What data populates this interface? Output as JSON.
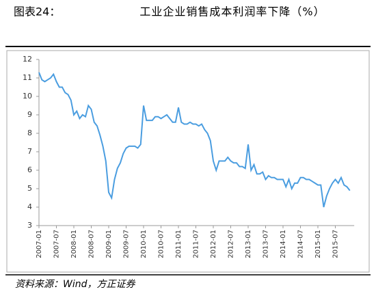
{
  "chart_data": {
    "type": "line",
    "figure_label": "图表24：",
    "title": "工业企业销售成本利润率下降（%）",
    "source": "资料来源：Wind，方正证券",
    "categories": [
      "2007-01",
      null,
      null,
      null,
      null,
      null,
      "2007-07",
      null,
      null,
      null,
      null,
      null,
      "2008-01",
      null,
      null,
      null,
      null,
      null,
      "2008-07",
      null,
      null,
      null,
      null,
      null,
      "2009-01",
      null,
      null,
      null,
      null,
      null,
      "2009-07",
      null,
      null,
      null,
      null,
      null,
      "2010-01",
      null,
      null,
      null,
      null,
      null,
      "2010-07",
      null,
      null,
      null,
      null,
      null,
      "2011-01",
      null,
      null,
      null,
      null,
      null,
      "2011-07",
      null,
      null,
      null,
      null,
      null,
      "2012-01",
      null,
      null,
      null,
      null,
      null,
      "2012-07",
      null,
      null,
      null,
      null,
      null,
      "2013-01",
      null,
      null,
      null,
      null,
      null,
      "2013-07",
      null,
      null,
      null,
      null,
      null,
      "2014-01",
      null,
      null,
      null,
      null,
      null,
      "2014-07",
      null,
      null,
      null,
      null,
      null,
      "2015-01",
      null,
      null,
      null,
      null,
      null,
      "2015-07",
      null,
      null,
      null,
      null,
      null
    ],
    "series": [
      {
        "color": "#4a9de0",
        "values": [
          11.3,
          10.9,
          10.8,
          10.9,
          11.0,
          11.2,
          10.8,
          10.5,
          10.5,
          10.2,
          10.1,
          9.8,
          9.0,
          9.2,
          8.8,
          9.0,
          8.9,
          9.5,
          9.3,
          8.6,
          8.4,
          7.9,
          7.3,
          6.5,
          4.8,
          4.5,
          5.5,
          6.1,
          6.4,
          6.9,
          7.2,
          7.3,
          7.3,
          7.3,
          7.2,
          7.4,
          9.5,
          8.7,
          8.7,
          8.7,
          8.9,
          8.9,
          8.8,
          8.9,
          9.0,
          8.8,
          8.6,
          8.6,
          9.4,
          8.6,
          8.5,
          8.5,
          8.6,
          8.5,
          8.5,
          8.4,
          8.5,
          8.2,
          8.0,
          7.6,
          6.5,
          6.0,
          6.5,
          6.5,
          6.5,
          6.7,
          6.5,
          6.4,
          6.4,
          6.2,
          6.2,
          6.1,
          7.4,
          6.0,
          6.3,
          5.8,
          5.8,
          5.9,
          5.5,
          5.7,
          5.6,
          5.6,
          5.5,
          5.5,
          5.5,
          5.1,
          5.5,
          5.0,
          5.3,
          5.3,
          5.6,
          5.6,
          5.5,
          5.5,
          5.4,
          5.3,
          5.2,
          5.2,
          4.0,
          4.6,
          5.0,
          5.3,
          5.5,
          5.3,
          5.6,
          5.2,
          5.1,
          4.9
        ]
      }
    ],
    "ylim": [
      3,
      12
    ],
    "yticks": [
      3,
      4,
      5,
      6,
      7,
      8,
      9,
      10,
      11,
      12
    ],
    "grid": false
  }
}
